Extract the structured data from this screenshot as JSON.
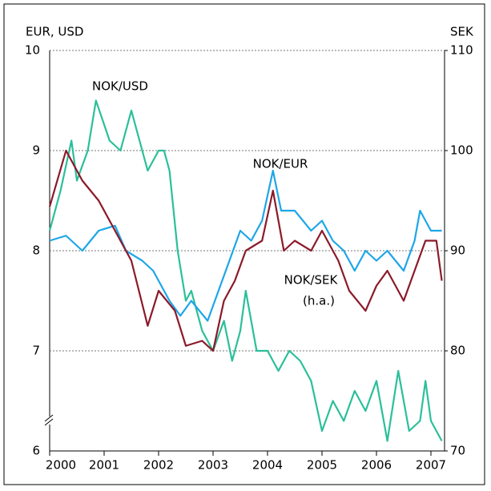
{
  "chart_data": {
    "type": "line",
    "ylabel": "EUR, USD",
    "y2label": "SEK",
    "xlim": [
      2000,
      2007.25
    ],
    "xticks": [
      2000,
      2001,
      2002,
      2003,
      2004,
      2005,
      2006,
      2007
    ],
    "ylim": [
      6,
      10
    ],
    "yticks": [
      6,
      7,
      8,
      9,
      10
    ],
    "y2lim": [
      70,
      110
    ],
    "y2ticks": [
      70,
      80,
      90,
      100,
      110
    ],
    "grid": true,
    "series": [
      {
        "name": "NOK/USD",
        "color": "#2bbf9a",
        "x": [
          2000,
          2000.2,
          2000.4,
          2000.5,
          2000.7,
          2000.85,
          2001.1,
          2001.3,
          2001.5,
          2001.65,
          2001.8,
          2002.0,
          2002.1,
          2002.2,
          2002.35,
          2002.5,
          2002.6,
          2002.8,
          2003.0,
          2003.2,
          2003.35,
          2003.5,
          2003.6,
          2003.8,
          2004.0,
          2004.2,
          2004.4,
          2004.6,
          2004.8,
          2005.0,
          2005.2,
          2005.4,
          2005.6,
          2005.8,
          2006.0,
          2006.2,
          2006.4,
          2006.6,
          2006.8,
          2006.9,
          2007.0,
          2007.2
        ],
        "values": [
          8.2,
          8.6,
          9.1,
          8.7,
          9.0,
          9.5,
          9.1,
          9.0,
          9.4,
          9.1,
          8.8,
          9.0,
          9.0,
          8.8,
          8.0,
          7.5,
          7.6,
          7.2,
          7.0,
          7.3,
          6.9,
          7.2,
          7.6,
          7.0,
          7.0,
          6.8,
          7.0,
          6.9,
          6.7,
          6.2,
          6.5,
          6.3,
          6.6,
          6.4,
          6.7,
          6.1,
          6.8,
          6.2,
          6.3,
          6.7,
          6.3,
          6.1
        ]
      },
      {
        "name": "NOK/EUR",
        "color": "#1ea6e8",
        "x": [
          2000,
          2000.3,
          2000.6,
          2000.9,
          2001.2,
          2001.4,
          2001.7,
          2001.9,
          2002.2,
          2002.4,
          2002.6,
          2002.9,
          2003.1,
          2003.3,
          2003.5,
          2003.7,
          2003.9,
          2004.1,
          2004.25,
          2004.5,
          2004.8,
          2005.0,
          2005.2,
          2005.4,
          2005.6,
          2005.8,
          2006.0,
          2006.2,
          2006.5,
          2006.7,
          2006.8,
          2007.0,
          2007.2
        ],
        "values": [
          8.1,
          8.15,
          8.0,
          8.2,
          8.25,
          8.0,
          7.9,
          7.8,
          7.5,
          7.35,
          7.5,
          7.3,
          7.6,
          7.9,
          8.2,
          8.1,
          8.3,
          8.8,
          8.4,
          8.4,
          8.2,
          8.3,
          8.1,
          8.0,
          7.8,
          8.0,
          7.9,
          8.0,
          7.8,
          8.1,
          8.4,
          8.2,
          8.2
        ]
      },
      {
        "name": "NOK/SEK",
        "color": "#8b1a2a",
        "axis": "y2",
        "x": [
          2000,
          2000.3,
          2000.6,
          2000.9,
          2001.2,
          2001.5,
          2001.8,
          2002.0,
          2002.3,
          2002.5,
          2002.8,
          2003.0,
          2003.2,
          2003.4,
          2003.6,
          2003.9,
          2004.1,
          2004.3,
          2004.5,
          2004.8,
          2005.0,
          2005.3,
          2005.5,
          2005.8,
          2006.0,
          2006.2,
          2006.5,
          2006.7,
          2006.9,
          2007.1,
          2007.2
        ],
        "values": [
          94.4,
          100,
          97,
          95,
          92,
          89,
          82.5,
          86,
          84,
          80.5,
          81,
          80,
          85,
          87,
          90,
          91,
          96,
          90,
          91,
          90,
          92,
          89,
          86,
          84,
          86.5,
          88,
          85,
          88,
          91,
          91,
          87
        ]
      }
    ],
    "annotations": [
      {
        "text": "NOK/USD"
      },
      {
        "text": "NOK/EUR"
      },
      {
        "text": "NOK/SEK"
      },
      {
        "text": "(h.a.)"
      }
    ]
  }
}
